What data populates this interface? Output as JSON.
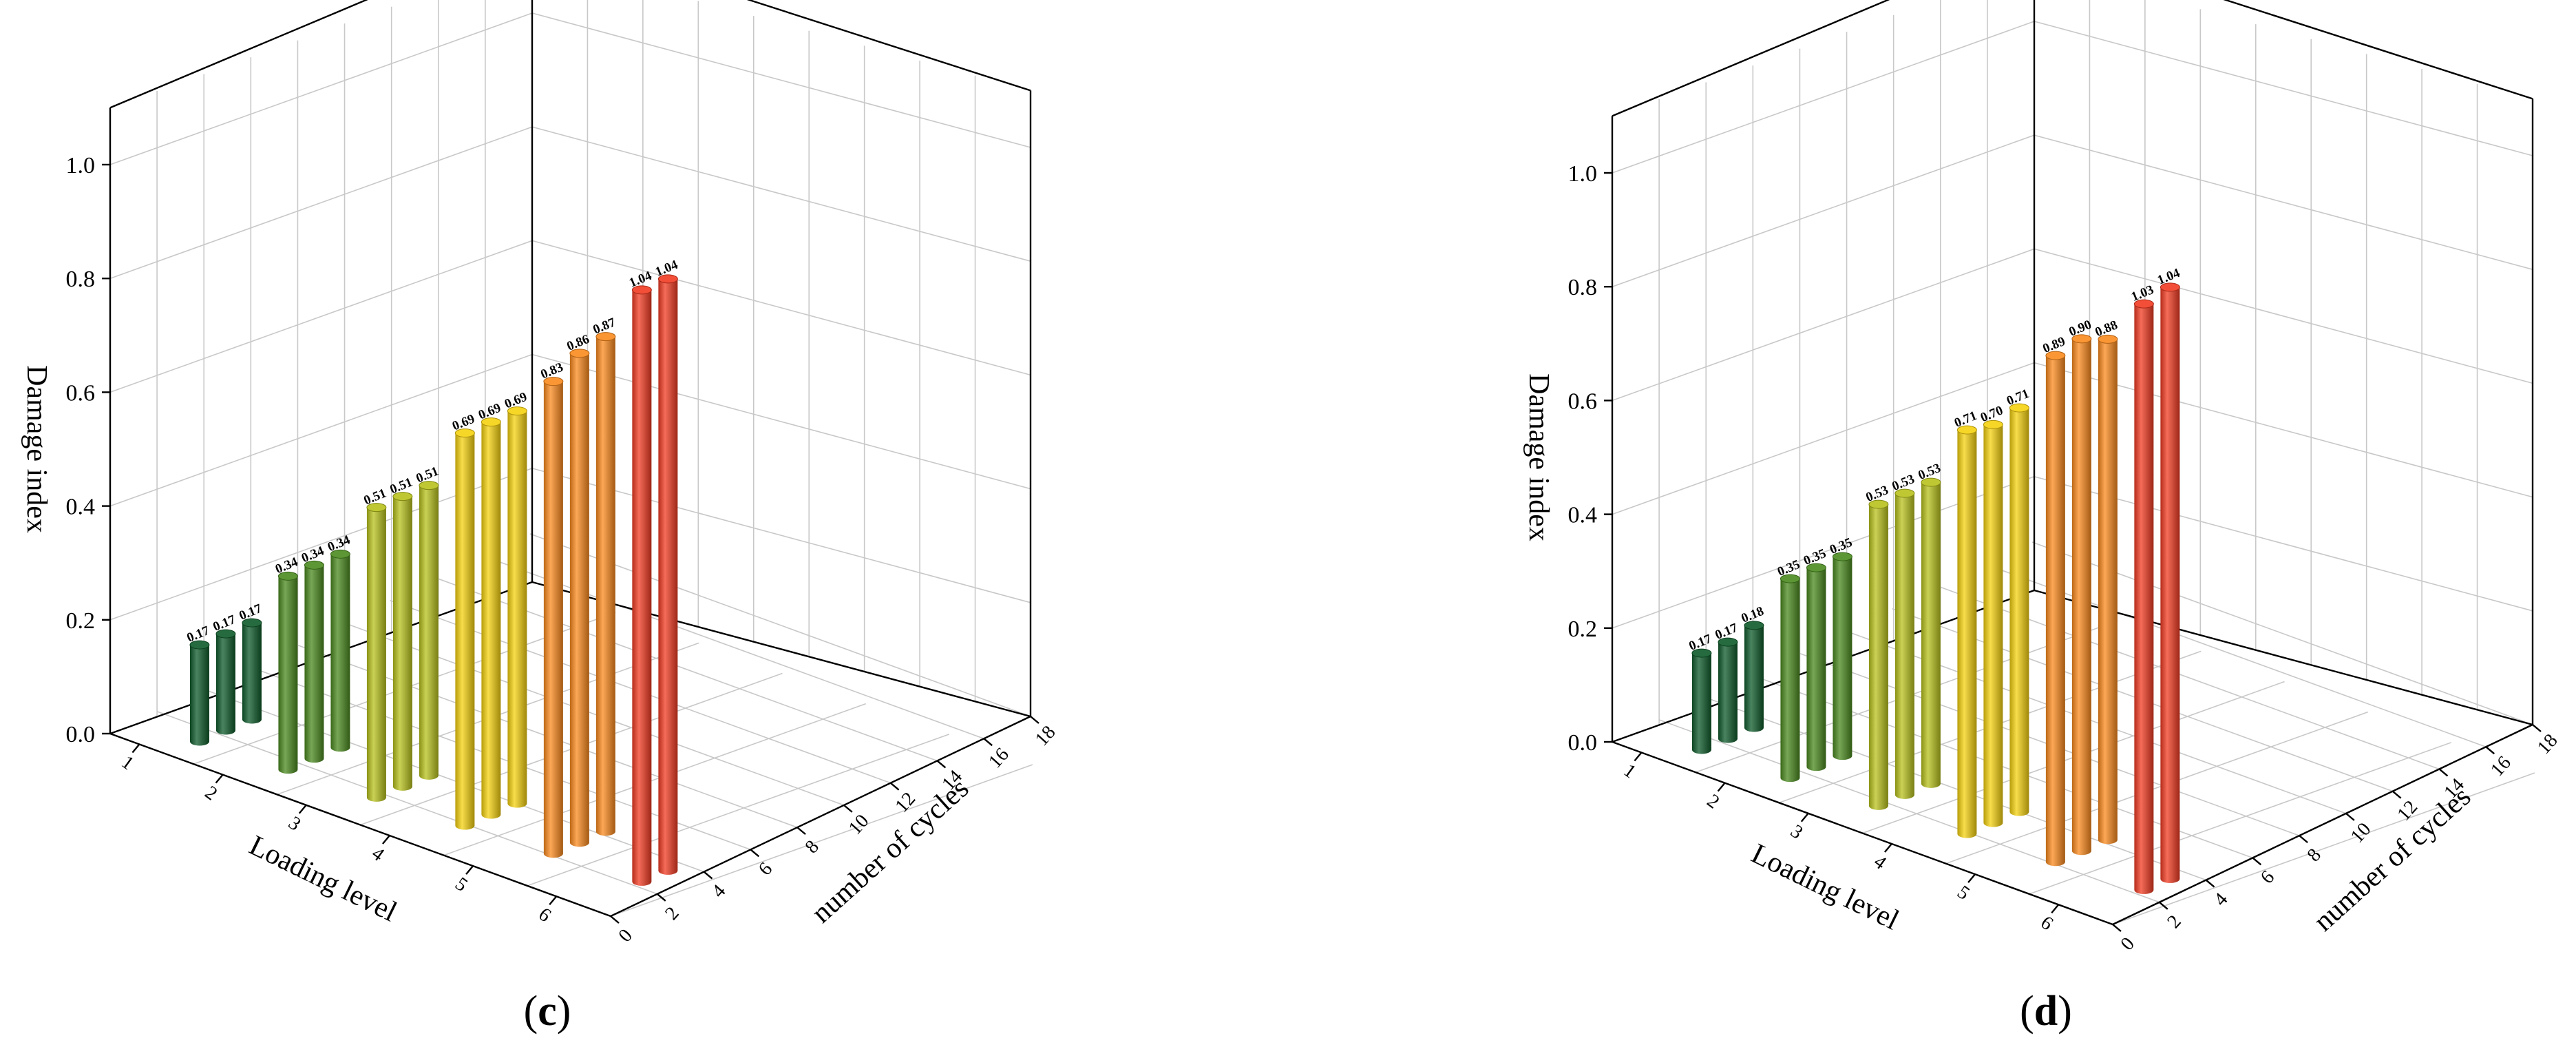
{
  "chart_data": [
    {
      "type": "bar",
      "panel_label": "c",
      "xlabel": "Loading level",
      "ylabel": "number of cycles",
      "zlabel": "Damage index",
      "x_ticks": [
        "1",
        "2",
        "3",
        "4",
        "5",
        "6"
      ],
      "y_ticks": [
        "0",
        "2",
        "4",
        "6",
        "8",
        "10",
        "12",
        "14",
        "16",
        "18"
      ],
      "z_ticks": [
        "0.0",
        "0.2",
        "0.4",
        "0.6",
        "0.8",
        "1.0"
      ],
      "zlim": [
        0,
        1.1
      ],
      "grid": true,
      "groups": [
        {
          "loading_level": 1,
          "values": [
            0.17,
            0.17,
            0.17
          ],
          "labels": [
            "0.17",
            "0.17",
            "0.17"
          ],
          "color": "#0e5a2a"
        },
        {
          "loading_level": 2,
          "values": [
            0.34,
            0.34,
            0.34
          ],
          "labels": [
            "0.34",
            "0.34",
            "0.34"
          ],
          "color": "#4a8a1e"
        },
        {
          "loading_level": 3,
          "values": [
            0.51,
            0.51,
            0.51
          ],
          "labels": [
            "0.51",
            "0.51",
            "0.51"
          ],
          "color": "#b8c21c"
        },
        {
          "loading_level": 4,
          "values": [
            0.69,
            0.69,
            0.69
          ],
          "labels": [
            "0.69",
            "0.69",
            "0.69"
          ],
          "color": "#f5d10f"
        },
        {
          "loading_level": 5,
          "values": [
            0.83,
            0.86,
            0.87
          ],
          "labels": [
            "0.83",
            "0.86",
            "0.87"
          ],
          "color": "#fb8a1d"
        },
        {
          "loading_level": 6,
          "values": [
            1.04,
            1.04
          ],
          "labels": [
            "1.04",
            "1.04"
          ],
          "color": "#f23b22"
        }
      ]
    },
    {
      "type": "bar",
      "panel_label": "d",
      "xlabel": "Loading level",
      "ylabel": "number of cycles",
      "zlabel": "Damage index",
      "x_ticks": [
        "1",
        "2",
        "3",
        "4",
        "5",
        "6"
      ],
      "y_ticks": [
        "0",
        "2",
        "4",
        "6",
        "8",
        "10",
        "12",
        "14",
        "16",
        "18"
      ],
      "z_ticks": [
        "0.0",
        "0.2",
        "0.4",
        "0.6",
        "0.8",
        "1.0"
      ],
      "zlim": [
        0,
        1.1
      ],
      "grid": true,
      "groups": [
        {
          "loading_level": 1,
          "values": [
            0.17,
            0.17,
            0.18
          ],
          "labels": [
            "0.17",
            "0.17",
            "0.18"
          ],
          "color": "#0e5a2a"
        },
        {
          "loading_level": 2,
          "values": [
            0.35,
            0.35,
            0.35
          ],
          "labels": [
            "0.35",
            "0.35",
            "0.35"
          ],
          "color": "#4a8a1e"
        },
        {
          "loading_level": 3,
          "values": [
            0.53,
            0.53,
            0.53
          ],
          "labels": [
            "0.53",
            "0.53",
            "0.53"
          ],
          "color": "#b8c21c"
        },
        {
          "loading_level": 4,
          "values": [
            0.71,
            0.7,
            0.71
          ],
          "labels": [
            "0.71",
            "0.70",
            "0.71"
          ],
          "color": "#f5d10f"
        },
        {
          "loading_level": 5,
          "values": [
            0.89,
            0.9,
            0.88
          ],
          "labels": [
            "0.89",
            "0.90",
            "0.88"
          ],
          "color": "#fb8a1d"
        },
        {
          "loading_level": 6,
          "values": [
            1.03,
            1.04
          ],
          "labels": [
            "1.03",
            "1.04"
          ],
          "color": "#f23b22"
        }
      ]
    }
  ]
}
